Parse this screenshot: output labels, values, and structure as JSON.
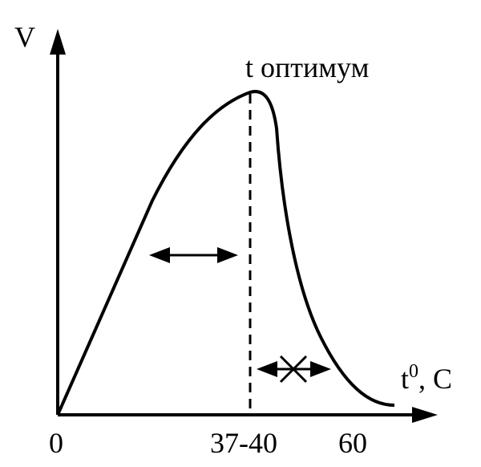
{
  "y_axis_label": "V",
  "peak_label": "t оптимум",
  "x_axis_label": {
    "base": "t",
    "superscript": "0",
    "suffix": ", C"
  },
  "x_labels": [
    "0",
    "37-40",
    "60"
  ]
}
